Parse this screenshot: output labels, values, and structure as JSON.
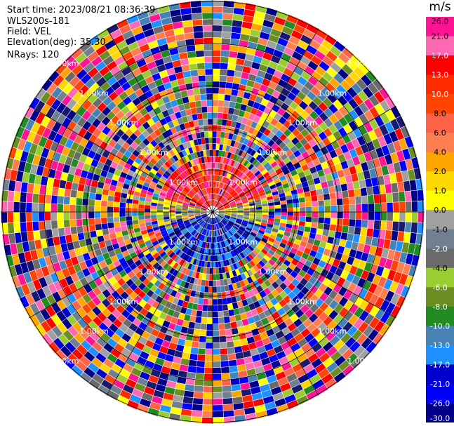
{
  "header": {
    "start_time": "Start time: 2023/08/21 08:36:39",
    "site": "WLS200s-181",
    "field": "Field: VEL",
    "elevation": "Elevation(deg): 35.30",
    "nrays": "NRays: 120"
  },
  "colorbar": {
    "unit": "m/s",
    "ticks": [
      "26.0",
      "21.0",
      "17.0",
      "13.0",
      "10.0",
      "8.0",
      "6.0",
      "4.0",
      "2.0",
      "1.0",
      "0.0",
      "-1.0",
      "-2.0",
      "-4.0",
      "-6.0",
      "-8.0",
      "-10.0",
      "-13.0",
      "-17.0",
      "-21.0",
      "-26.0",
      "-30.0"
    ],
    "colors": [
      "#ff1493",
      "#ff69b4",
      "#ff0000",
      "#ff2a00",
      "#ff4500",
      "#ff6347",
      "#ff7f50",
      "#ffa500",
      "#ffd700",
      "#ffff00",
      "#a0a0a0",
      "#708090",
      "#6b6b6b",
      "#9acd32",
      "#6b8e23",
      "#228b22",
      "#4682b4",
      "#1e90ff",
      "#0000cd",
      "#0000ff",
      "#00008b",
      "#000080",
      "#191970"
    ]
  },
  "chart_data": {
    "type": "heatmap",
    "title": "",
    "field": "VEL",
    "units": "m/s",
    "projection": "polar (plan position indicator)",
    "nrays": 120,
    "range_ring_labels": [
      "1.00km",
      "1.00km",
      "1.00km",
      "1.00km",
      "1.00km",
      "1.00km",
      "1.00km",
      "1.00km",
      "1.00km",
      "1.00km",
      "1.00km",
      "1.00km",
      "1.00km",
      "1.00km",
      "1.00km",
      "1.00km",
      "1.00km",
      "1.00km",
      "1.00km",
      "1.00km",
      "1.00km",
      "1.00km",
      "1.00km",
      "1.00km"
    ],
    "near_field_pattern": {
      "north_half": "positive velocities (red to pink, 8.0 to 26.0 m/s)",
      "south_half": "negative velocities (blue, -8.0 to -21.0 m/s)",
      "west_east_axis": "near zero (grey / green / yellow)"
    },
    "far_field_pattern": "noisy, random values across full color scale"
  }
}
